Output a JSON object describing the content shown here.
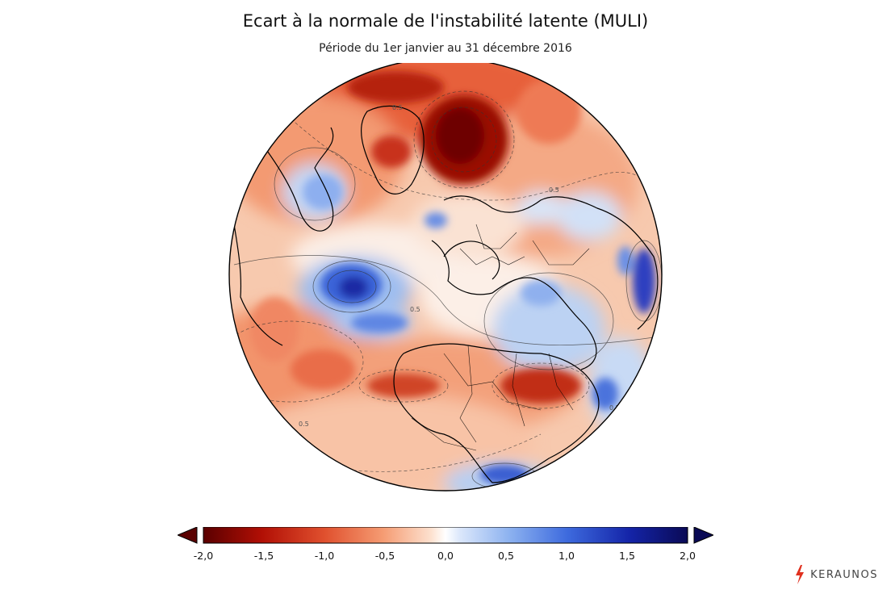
{
  "header": {
    "title": "Ecart à la normale de l'instabilité latente (MULI)",
    "subtitle": "Période du 1er janvier au 31 décembre 2016"
  },
  "map": {
    "projection": "orthographic",
    "variable": "MULI anomaly",
    "contour_labels": [
      "0.5",
      "0.5",
      "0.5",
      "0.5",
      "0.5"
    ],
    "colors": {
      "deep_red": "#7a0000",
      "red": "#c82b1d",
      "orange": "#f08a5c",
      "light_orange": "#fbd3be",
      "white": "#ffffff",
      "light_blue": "#c9dcf7",
      "blue": "#5a88e6",
      "deep_blue": "#1c2fb4",
      "navy": "#0a0a55"
    }
  },
  "colorbar": {
    "ticks": [
      "-2,0",
      "-1,5",
      "-1,0",
      "-0,5",
      "0,0",
      "0,5",
      "1,0",
      "1,5",
      "2,0"
    ],
    "min": -2.0,
    "max": 2.0,
    "extend": "both"
  },
  "brand": {
    "name": "KERAUNOS"
  }
}
